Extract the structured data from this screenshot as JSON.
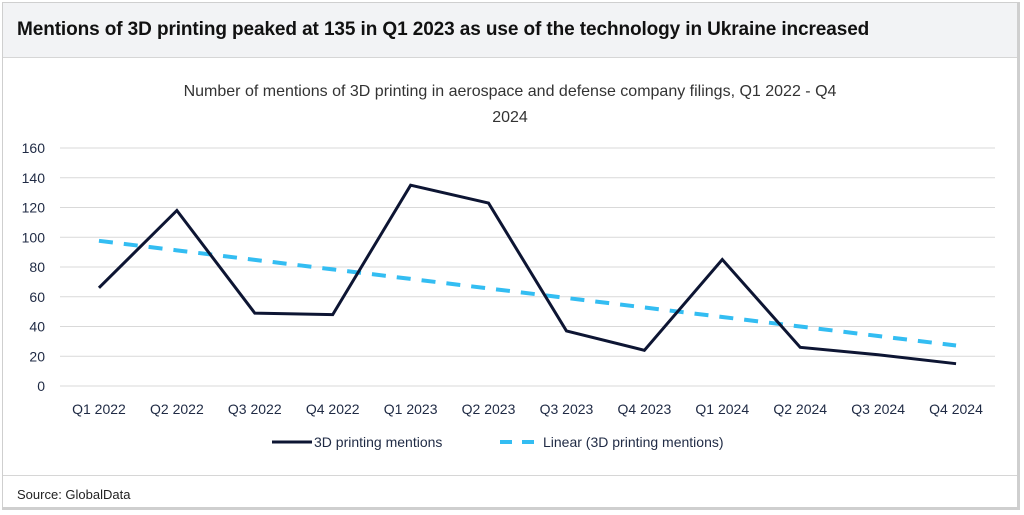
{
  "headline": "Mentions of 3D printing peaked at 135 in Q1 2023 as use of the technology in Ukraine increased",
  "source": "Source: GlobalData",
  "colors": {
    "series": "#0d1533",
    "trend": "#33bdf2",
    "grid": "#d9d9d9",
    "header_bg": "#f2f3f5"
  },
  "chart_data": {
    "type": "line",
    "title_lines": [
      "Number of mentions of 3D printing in aerospace and defense company filings, Q1 2022 - Q4",
      "2024"
    ],
    "categories": [
      "Q1 2022",
      "Q2 2022",
      "Q3 2022",
      "Q4 2022",
      "Q1 2023",
      "Q2 2023",
      "Q3 2023",
      "Q4 2023",
      "Q1 2024",
      "Q2 2024",
      "Q3 2024",
      "Q4 2024"
    ],
    "series": [
      {
        "name": "3D printing mentions",
        "values": [
          66,
          118,
          49,
          48,
          135,
          123,
          37,
          24,
          85,
          26,
          21,
          15
        ],
        "style": "solid"
      },
      {
        "name": "Linear (3D printing mentions)",
        "values": [
          97.6,
          91.2,
          84.8,
          78.4,
          72.0,
          65.6,
          59.2,
          52.8,
          46.4,
          40.0,
          33.6,
          27.2
        ],
        "style": "dashed"
      }
    ],
    "yticks": [
      "0",
      "20",
      "40",
      "60",
      "80",
      "100",
      "120",
      "140",
      "160"
    ],
    "ylim": [
      0,
      160
    ],
    "xlabel": "",
    "ylabel": "",
    "grid": true,
    "legend_position": "bottom"
  }
}
